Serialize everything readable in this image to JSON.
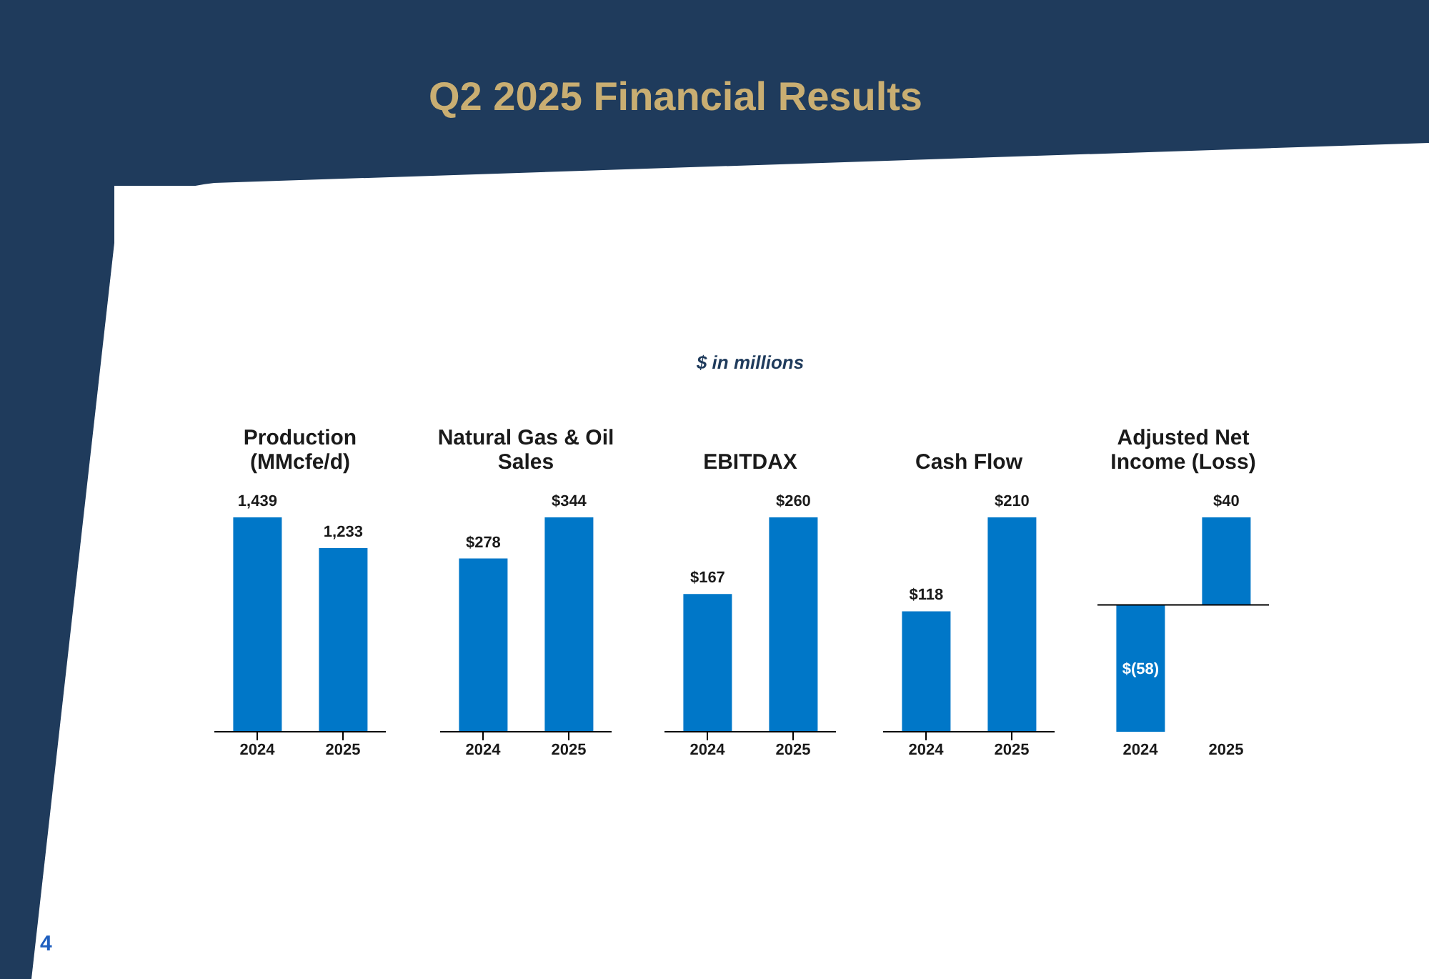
{
  "chart_data": [
    {
      "type": "bar",
      "title": "Production (MMcfe/d)",
      "categories": [
        "2024",
        "2025"
      ],
      "values": [
        1439,
        1233
      ],
      "color": "#0077c8",
      "value_labels": [
        "1,439",
        "1,233"
      ],
      "annotations": [
        "Q2 2025 Financial Results",
        "$ in millions",
        "4"
      ]
    },
    {
      "type": "bar",
      "title": "Natural Gas & Oil Sales",
      "categories": [
        "2024",
        "2025"
      ],
      "values": [
        278,
        344
      ],
      "color": "#0077c8",
      "value_labels": [
        "$278",
        "$344"
      ]
    },
    {
      "type": "bar",
      "title": "EBITDAX",
      "categories": [
        "2024",
        "2025"
      ],
      "values": [
        167,
        260
      ],
      "color": "#0077c8",
      "value_labels": [
        "$167",
        "$260"
      ]
    },
    {
      "type": "bar",
      "title": "Cash Flow",
      "categories": [
        "2024",
        "2025"
      ],
      "values": [
        118,
        210
      ],
      "color": "#0077c8",
      "value_labels": [
        "$118",
        "$210"
      ]
    },
    {
      "type": "bar",
      "title": "Adjusted Net Income (Loss)",
      "categories": [
        "2024",
        "2025"
      ],
      "values": [
        -58,
        40
      ],
      "color": "#0077c8",
      "value_labels": [
        "$(58)",
        "$40"
      ]
    }
  ]
}
